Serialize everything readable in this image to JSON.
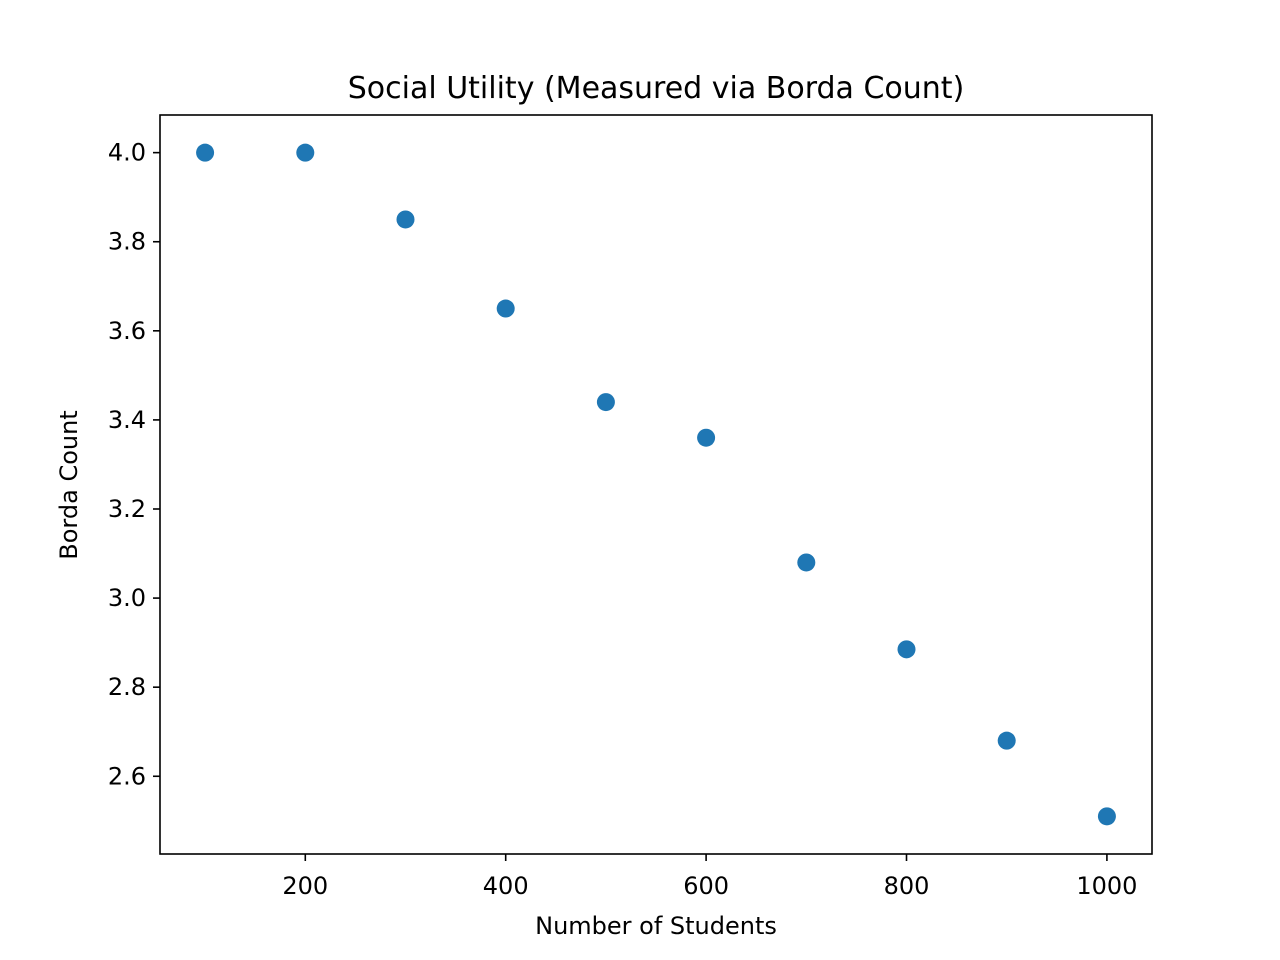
{
  "chart_data": {
    "type": "scatter",
    "title": "Social Utility (Measured via Borda Count)",
    "xlabel": "Number of Students",
    "ylabel": "Borda Count",
    "x": [
      100,
      200,
      300,
      400,
      500,
      600,
      700,
      800,
      900,
      1000
    ],
    "y": [
      4.0,
      4.0,
      3.85,
      3.65,
      3.44,
      3.36,
      3.08,
      2.885,
      2.68,
      2.51
    ],
    "xlim": [
      55,
      1045
    ],
    "ylim": [
      2.4255,
      4.0845
    ],
    "xticks": [
      200,
      400,
      600,
      800,
      1000
    ],
    "xtick_labels": [
      "200",
      "400",
      "600",
      "800",
      "1000"
    ],
    "yticks": [
      2.6,
      2.8,
      3.0,
      3.2,
      3.4,
      3.6,
      3.8,
      4.0
    ],
    "ytick_labels": [
      "2.6",
      "2.8",
      "3.0",
      "3.2",
      "3.4",
      "3.6",
      "3.8",
      "4.0"
    ],
    "grid": false,
    "marker_color": "#1f77b4"
  }
}
